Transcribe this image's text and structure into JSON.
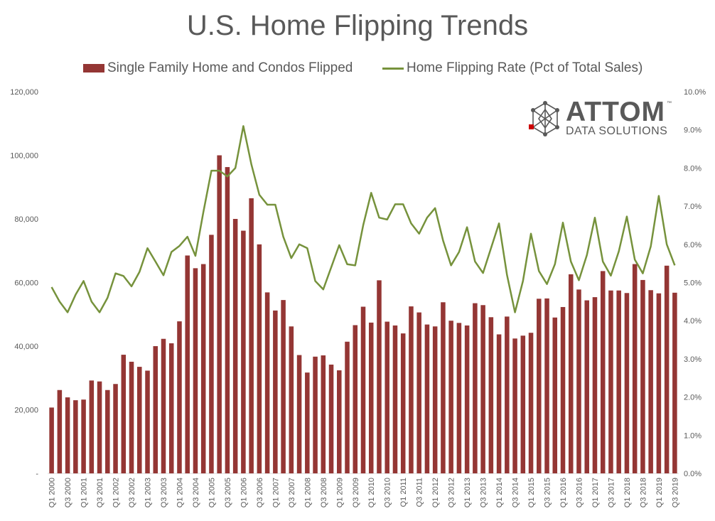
{
  "chart_data": {
    "type": "bar",
    "title": "U.S. Home Flipping Trends",
    "categories": [
      "Q1 2000",
      "Q2 2000",
      "Q3 2000",
      "Q4 2000",
      "Q1 2001",
      "Q2 2001",
      "Q3 2001",
      "Q4 2001",
      "Q1 2002",
      "Q2 2002",
      "Q3 2002",
      "Q4 2002",
      "Q1 2003",
      "Q2 2003",
      "Q3 2003",
      "Q4 2003",
      "Q1 2004",
      "Q2 2004",
      "Q3 2004",
      "Q4 2004",
      "Q1 2005",
      "Q2 2005",
      "Q3 2005",
      "Q4 2005",
      "Q1 2006",
      "Q2 2006",
      "Q3 2006",
      "Q4 2006",
      "Q1 2007",
      "Q2 2007",
      "Q3 2007",
      "Q4 2007",
      "Q1 2008",
      "Q2 2008",
      "Q3 2008",
      "Q4 2008",
      "Q1 2009",
      "Q2 2009",
      "Q3 2009",
      "Q4 2009",
      "Q1 2010",
      "Q2 2010",
      "Q3 2010",
      "Q4 2010",
      "Q1 2011",
      "Q2 2011",
      "Q3 2011",
      "Q4 2011",
      "Q1 2012",
      "Q2 2012",
      "Q3 2012",
      "Q4 2012",
      "Q1 2013",
      "Q2 2013",
      "Q3 2013",
      "Q4 2013",
      "Q1 2014",
      "Q2 2014",
      "Q3 2014",
      "Q4 2014",
      "Q1 2015",
      "Q2 2015",
      "Q3 2015",
      "Q4 2015",
      "Q1 2016",
      "Q2 2016",
      "Q3 2016",
      "Q4 2016",
      "Q1 2017",
      "Q2 2017",
      "Q3 2017",
      "Q4 2017",
      "Q1 2018",
      "Q2 2018",
      "Q3 2018",
      "Q4 2018",
      "Q1 2019",
      "Q2 2019",
      "Q3 2019"
    ],
    "x_tick_labels": [
      "Q1 2000",
      "Q3 2000",
      "Q1 2001",
      "Q3 2001",
      "Q1 2002",
      "Q3 2002",
      "Q1 2003",
      "Q3 2003",
      "Q1 2004",
      "Q3 2004",
      "Q1 2005",
      "Q3 2005",
      "Q1 2006",
      "Q3 2006",
      "Q1 2007",
      "Q3 2007",
      "Q1 2008",
      "Q3 2008",
      "Q1 2009",
      "Q3 2009",
      "Q1 2010",
      "Q3 2010",
      "Q1 2011",
      "Q3 2011",
      "Q1 2012",
      "Q3 2012",
      "Q1 2013",
      "Q3 2013",
      "Q1 2014",
      "Q3 2014",
      "Q1 2015",
      "Q3 2015",
      "Q1 2016",
      "Q3 2016",
      "Q1 2017",
      "Q3 2017",
      "Q1 2018",
      "Q3 2018",
      "Q1 2019",
      "Q3 2019"
    ],
    "series": [
      {
        "name": "Single Family Home and Condos Flipped",
        "type": "bar",
        "axis": "left",
        "color": "#943634",
        "values": [
          20700,
          26200,
          23900,
          23000,
          23200,
          29200,
          28900,
          26200,
          28100,
          37300,
          35100,
          33500,
          32300,
          40000,
          42300,
          40900,
          47800,
          68500,
          64500,
          65800,
          75000,
          100000,
          96300,
          80000,
          76300,
          86500,
          72000,
          56900,
          51200,
          54500,
          46200,
          37200,
          31700,
          36700,
          37100,
          34200,
          32400,
          41400,
          46600,
          52400,
          47400,
          60700,
          47700,
          46500,
          44000,
          52500,
          50600,
          46800,
          46200,
          53800,
          48000,
          47300,
          46500,
          53500,
          52900,
          49100,
          43700,
          49300,
          42400,
          43300,
          44200,
          54900,
          55000,
          49000,
          52300,
          62600,
          57800,
          54400,
          55400,
          63600,
          57500,
          57500,
          56700,
          65800,
          60800,
          57600,
          56600,
          65300,
          56800
        ]
      },
      {
        "name": "Home Flipping Rate (Pct of Total Sales)",
        "type": "line",
        "axis": "right",
        "color": "#76923c",
        "values": [
          4.88,
          4.5,
          4.22,
          4.68,
          5.04,
          4.5,
          4.22,
          4.6,
          5.24,
          5.17,
          4.9,
          5.28,
          5.9,
          5.55,
          5.19,
          5.8,
          5.96,
          6.2,
          5.7,
          6.85,
          7.93,
          7.93,
          7.78,
          8.0,
          9.1,
          8.1,
          7.3,
          7.04,
          7.04,
          6.2,
          5.64,
          6.0,
          5.9,
          5.04,
          4.82,
          5.4,
          5.98,
          5.48,
          5.45,
          6.5,
          7.35,
          6.7,
          6.65,
          7.05,
          7.05,
          6.55,
          6.28,
          6.7,
          6.95,
          6.1,
          5.45,
          5.8,
          6.45,
          5.55,
          5.25,
          5.9,
          6.55,
          5.2,
          4.22,
          5.04,
          6.28,
          5.3,
          4.96,
          5.48,
          6.57,
          5.55,
          5.06,
          5.72,
          6.7,
          5.55,
          5.18,
          5.82,
          6.73,
          5.6,
          5.24,
          5.95,
          7.27,
          6.0,
          5.45
        ]
      }
    ],
    "y_left": {
      "min": 0,
      "max": 120000,
      "ticks": [
        "-",
        "20,000",
        "40,000",
        "60,000",
        "80,000",
        "100,000",
        "120,000"
      ]
    },
    "y_right": {
      "min": 0,
      "max": 10,
      "ticks": [
        "0.0%",
        "1.0%",
        "2.0%",
        "3.0%",
        "4.0%",
        "5.0%",
        "6.0%",
        "7.0%",
        "8.0%",
        "9.0%",
        "10.0%"
      ]
    },
    "grid": false,
    "legend_position": "top"
  },
  "logo": {
    "word": "ATTOM",
    "subtitle": "DATA SOLUTIONS",
    "tm": "™"
  },
  "colors": {
    "bar": "#943634",
    "line": "#76923c",
    "text": "#595959",
    "axis": "#d9d9d9",
    "logo_accent": "#cc0000"
  }
}
